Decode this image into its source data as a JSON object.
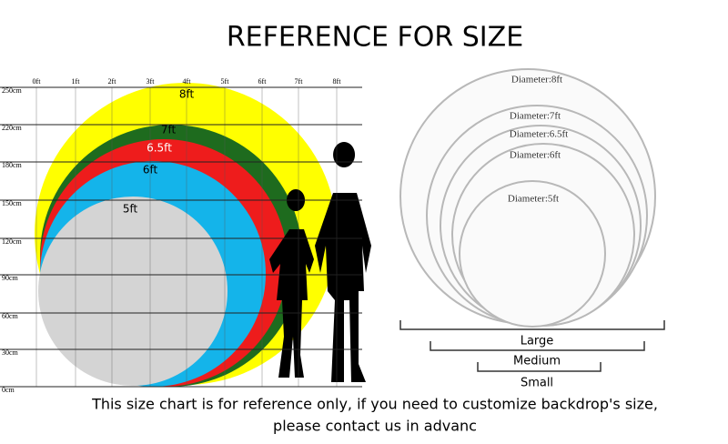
{
  "title": "REFERENCE FOR SIZE",
  "ruler": {
    "x_labels": [
      "0ft",
      "1ft",
      "2ft",
      "3ft",
      "4ft",
      "5ft",
      "6ft",
      "7ft",
      "8ft"
    ],
    "y_labels": [
      "250cm",
      "220cm",
      "180cm",
      "150cm",
      "120cm",
      "90cm",
      "60cm",
      "30cm",
      "0cm"
    ]
  },
  "circles": [
    {
      "label": "8ft"
    },
    {
      "label": "7ft"
    },
    {
      "label": "6.5ft"
    },
    {
      "label": "6ft"
    },
    {
      "label": "5ft"
    }
  ],
  "products": [
    {
      "label": "Diameter:8ft"
    },
    {
      "label": "Diameter:7ft"
    },
    {
      "label": "Diameter:6.5ft"
    },
    {
      "label": "Diameter:6ft"
    },
    {
      "label": "Diameter:5ft"
    }
  ],
  "sizes": [
    "Large",
    "Medium",
    "Small"
  ],
  "footer": [
    "This size chart is for reference only, if you need to customize backdrop's size,",
    "please contact us in advanc"
  ]
}
